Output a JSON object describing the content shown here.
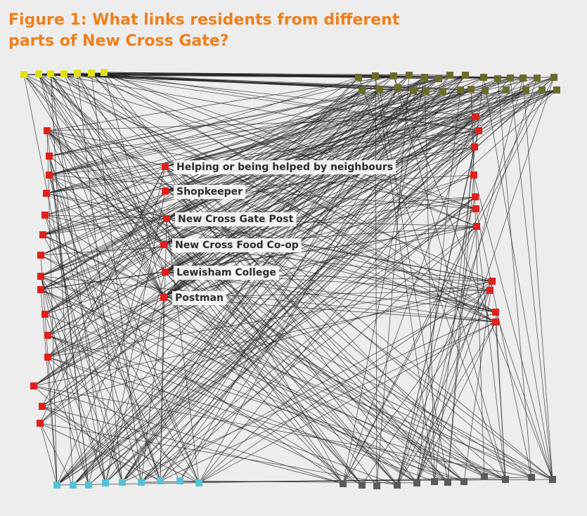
{
  "figure": {
    "title_line1": "Figure 1: What links residents from different",
    "title_line2": "parts of New Cross Gate?"
  },
  "colors": {
    "background": "#ededee",
    "title": "#ef7f1a",
    "links": "#222222",
    "label_backdrop": "#ffffff",
    "group_yellow": "#e1e215",
    "group_olive": "#6b6b2c",
    "group_red": "#e0201c",
    "group_cyan": "#56c2d6",
    "group_grey": "#5b5b5b"
  },
  "hubs": [
    {
      "label": "Helping or being helped by neighbours"
    },
    {
      "label": "Shopkeeper"
    },
    {
      "label": "New Cross Gate Post"
    },
    {
      "label": "New Cross Food Co-op"
    },
    {
      "label": "Lewisham College"
    },
    {
      "label": "Postman"
    }
  ]
}
